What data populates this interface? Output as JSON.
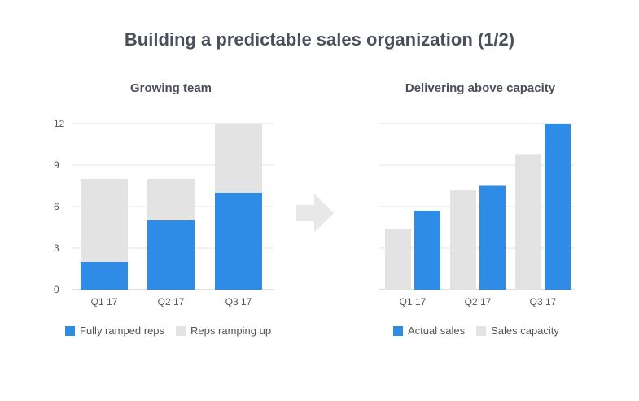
{
  "title": "Building a predictable sales organization (1/2)",
  "colors": {
    "blue": "#2e8be6",
    "gray": "#e3e3e3"
  },
  "arrow_icon": "right-arrow-icon",
  "chart_data": [
    {
      "type": "bar",
      "stacked": true,
      "title": "Growing team",
      "categories": [
        "Q1 17",
        "Q2 17",
        "Q3 17"
      ],
      "series": [
        {
          "name": "Fully ramped reps",
          "color": "#2e8be6",
          "values": [
            2,
            5,
            7
          ]
        },
        {
          "name": "Reps ramping up",
          "color": "#e3e3e3",
          "values": [
            6,
            3,
            5
          ]
        }
      ],
      "ylim": [
        0,
        12
      ],
      "yticks": [
        0,
        3,
        6,
        9,
        12
      ],
      "grid": true,
      "legend": "bottom"
    },
    {
      "type": "bar",
      "stacked": false,
      "title": "Delivering above capacity",
      "categories": [
        "Q1 17",
        "Q2 17",
        "Q3 17"
      ],
      "series": [
        {
          "name": "Sales capacity",
          "color": "#e3e3e3",
          "values": [
            4.4,
            7.2,
            9.8
          ]
        },
        {
          "name": "Actual sales",
          "color": "#2e8be6",
          "values": [
            5.7,
            7.5,
            12
          ]
        }
      ],
      "legend_order": [
        "Actual sales",
        "Sales capacity"
      ],
      "ylim": [
        0,
        12
      ],
      "grid": true,
      "legend": "bottom"
    }
  ]
}
